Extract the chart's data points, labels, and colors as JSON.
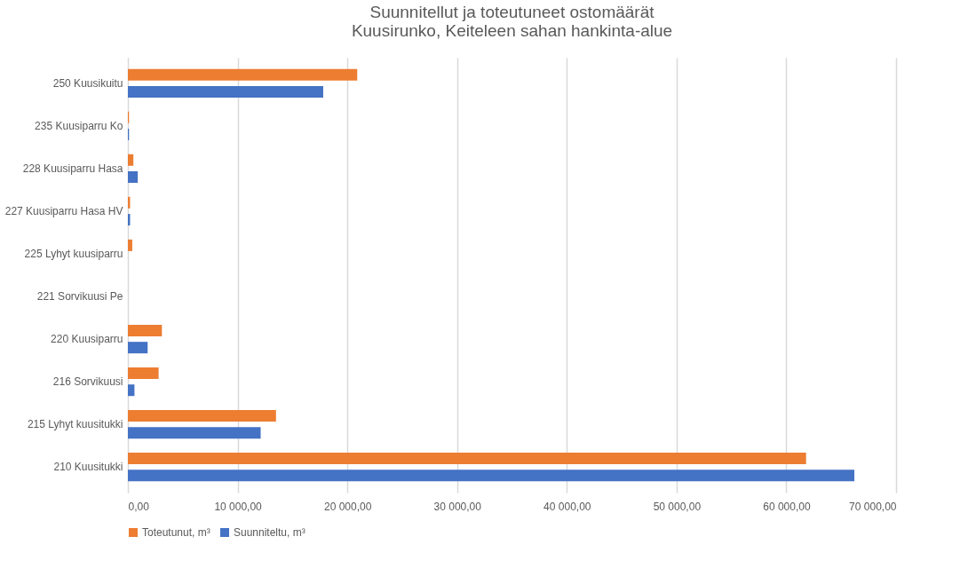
{
  "chart_data": {
    "type": "bar",
    "orientation": "horizontal",
    "title": [
      "Suunnitellut ja toteutuneet ostomäärät",
      "Kuusirunko, Keiteleen sahan hankinta-alue"
    ],
    "categories": [
      "250 Kuusikuitu",
      "235 Kuusiparru Ko",
      "228 Kuusiparru Hasa",
      "227 Kuusiparru Hasa HV",
      "225 Lyhyt kuusiparru",
      "221 Sorvikuusi Pe",
      "220 Kuusiparru",
      "216 Sorvikuusi",
      "215 Lyhyt kuusitukki",
      "210 Kuusitukki"
    ],
    "series": [
      {
        "name": "Toteutunut, m³",
        "color": "#ed7d31",
        "values": [
          20900,
          100,
          500,
          200,
          400,
          0,
          3100,
          2800,
          13500,
          61800
        ]
      },
      {
        "name": "Suunniteltu, m³",
        "color": "#4472c4",
        "values": [
          17800,
          100,
          900,
          200,
          0,
          0,
          1800,
          600,
          12100,
          66200
        ]
      }
    ],
    "xlim": [
      0,
      70000
    ],
    "xticks": [
      {
        "value": 0,
        "label": "0,00"
      },
      {
        "value": 10000,
        "label": "10 000,00"
      },
      {
        "value": 20000,
        "label": "20 000,00"
      },
      {
        "value": 30000,
        "label": "30 000,00"
      },
      {
        "value": 40000,
        "label": "40 000,00"
      },
      {
        "value": 50000,
        "label": "50 000,00"
      },
      {
        "value": 60000,
        "label": "60 000,00"
      },
      {
        "value": 70000,
        "label": "70 000,00"
      }
    ],
    "grid": "x",
    "legend": "bottom"
  }
}
